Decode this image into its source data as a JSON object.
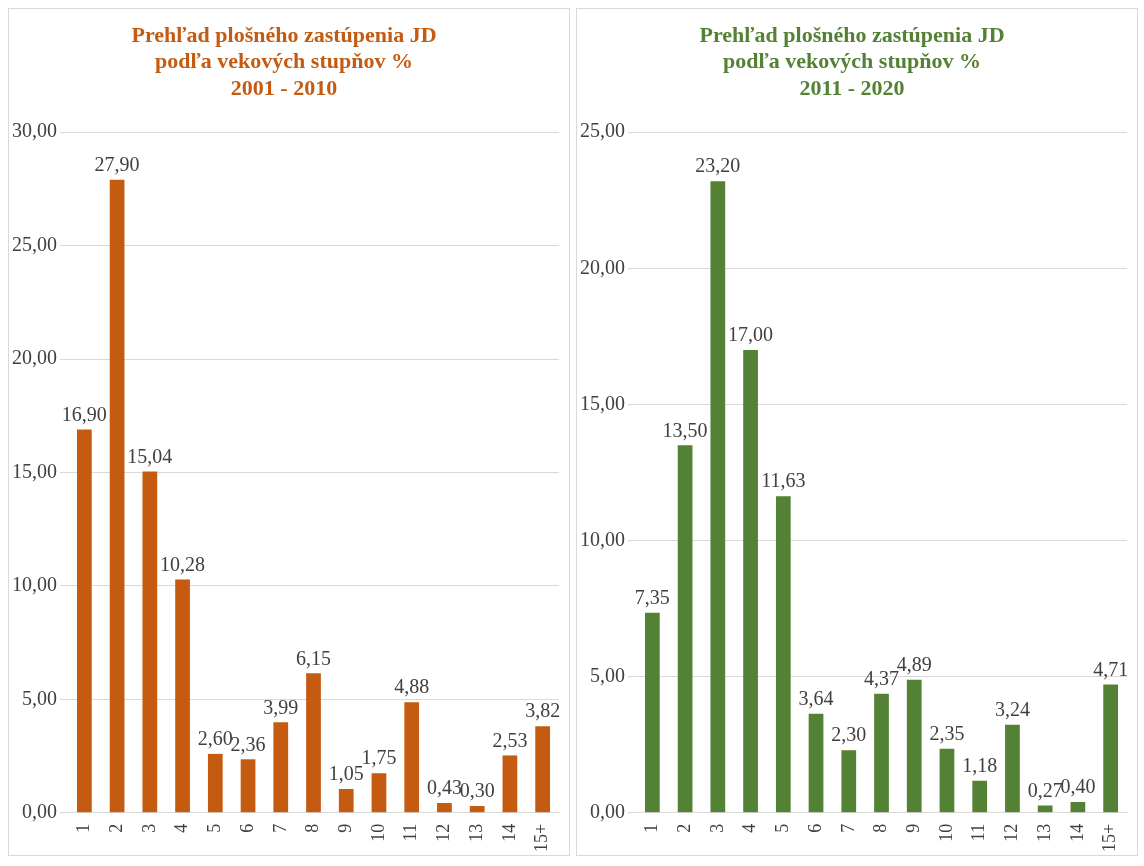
{
  "chart_data": [
    {
      "type": "bar",
      "title": "Prehľad plošného zastúpenia JD\npodľa vekových stupňov %\n2001 - 2010",
      "categories": [
        "1",
        "2",
        "3",
        "4",
        "5",
        "6",
        "7",
        "8",
        "9",
        "10",
        "11",
        "12",
        "13",
        "14",
        "15+"
      ],
      "values": [
        16.9,
        27.9,
        15.04,
        10.28,
        2.6,
        2.36,
        3.99,
        6.15,
        1.05,
        1.75,
        4.88,
        0.43,
        0.3,
        2.53,
        3.82
      ],
      "color": "#c55a11",
      "value_labels": [
        "16,90",
        "27,90",
        "15,04",
        "10,28",
        "2,60",
        "2,36",
        "3,99",
        "6,15",
        "1,05",
        "1,75",
        "4,88",
        "0,43",
        "0,30",
        "2,53",
        "3,82"
      ],
      "ylim": [
        0,
        30
      ],
      "yticks": [
        {
          "value": 0,
          "label": "0,00"
        },
        {
          "value": 5,
          "label": "5,00"
        },
        {
          "value": 10,
          "label": "10,00"
        },
        {
          "value": 15,
          "label": "15,00"
        },
        {
          "value": 20,
          "label": "20,00"
        },
        {
          "value": 25,
          "label": "25,00"
        },
        {
          "value": 30,
          "label": "30,00"
        }
      ],
      "grid": "y",
      "legend": false
    },
    {
      "type": "bar",
      "title": "Prehľad plošného zastúpenia JD\npodľa vekových stupňov %\n2011 - 2020",
      "categories": [
        "1",
        "2",
        "3",
        "4",
        "5",
        "6",
        "7",
        "8",
        "9",
        "10",
        "11",
        "12",
        "13",
        "14",
        "15+"
      ],
      "values": [
        7.35,
        13.5,
        23.2,
        17.0,
        11.63,
        3.64,
        2.3,
        4.37,
        4.89,
        2.35,
        1.18,
        3.24,
        0.27,
        0.4,
        4.71
      ],
      "color": "#548235",
      "value_labels": [
        "7,35",
        "13,50",
        "23,20",
        "17,00",
        "11,63",
        "3,64",
        "2,30",
        "4,37",
        "4,89",
        "2,35",
        "1,18",
        "3,24",
        "0,27",
        "0,40",
        "4,71"
      ],
      "ylim": [
        0,
        25
      ],
      "yticks": [
        {
          "value": 0,
          "label": "0,00"
        },
        {
          "value": 5,
          "label": "5,00"
        },
        {
          "value": 10,
          "label": "10,00"
        },
        {
          "value": 15,
          "label": "15,00"
        },
        {
          "value": 20,
          "label": "20,00"
        },
        {
          "value": 25,
          "label": "25,00"
        }
      ],
      "grid": "y",
      "legend": false
    }
  ]
}
